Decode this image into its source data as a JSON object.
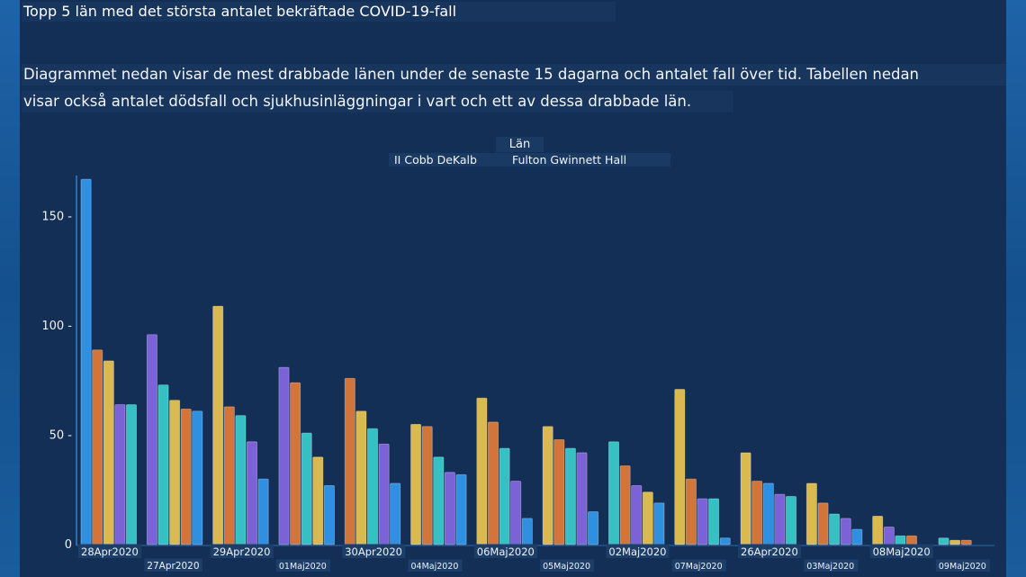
{
  "page": {
    "title": "Topp 5 län med det största antalet bekräftade COVID-19-fall",
    "description_line1": "Diagrammet nedan visar de mest drabbade länen under de senaste 15 dagarna och antalet fall över tid. Tabellen nedan",
    "description_line2": "visar också antalet dödsfall och sjukhusinläggningar i vart och ett av dessa drabbade län."
  },
  "legend": {
    "title": "Län",
    "group1": "II Cobb DeKalb",
    "group2": "Fulton Gwinnett Hall"
  },
  "chart_data": {
    "type": "bar",
    "categories": [
      "28Apr2020",
      "27Apr2020",
      "29Apr2020",
      "01Maj2020",
      "30Apr2020",
      "04Maj2020",
      "06Maj2020",
      "05Maj2020",
      "02Maj2020",
      "07Maj2020",
      "26Apr2020",
      "03Maj2020",
      "08Maj2020",
      "09Maj2020"
    ],
    "values": [
      [
        167,
        89,
        84,
        64,
        64
      ],
      [
        96,
        73,
        66,
        62,
        61
      ],
      [
        109,
        63,
        59,
        47,
        30
      ],
      [
        81,
        74,
        51,
        40,
        27
      ],
      [
        76,
        61,
        53,
        46,
        28
      ],
      [
        55,
        54,
        40,
        33,
        32
      ],
      [
        67,
        56,
        44,
        29,
        12
      ],
      [
        54,
        48,
        44,
        42,
        15
      ],
      [
        47,
        36,
        27,
        24,
        19
      ],
      [
        71,
        30,
        21,
        21,
        3
      ],
      [
        42,
        29,
        28,
        23,
        22
      ],
      [
        28,
        19,
        14,
        12,
        7
      ],
      [
        13,
        8,
        4,
        4,
        0
      ],
      [
        3,
        2,
        2,
        0,
        0
      ]
    ],
    "bar_colors": [
      [
        "#2f8fe0",
        "#d2753a",
        "#d9b950",
        "#7b62d6",
        "#35c1c4"
      ],
      [
        "#7b62d6",
        "#35c1c4",
        "#d9b950",
        "#d2753a",
        "#2f8fe0"
      ],
      [
        "#d9b950",
        "#d2753a",
        "#35c1c4",
        "#7b62d6",
        "#2f8fe0"
      ],
      [
        "#7b62d6",
        "#d2753a",
        "#35c1c4",
        "#d9b950",
        "#2f8fe0"
      ],
      [
        "#d2753a",
        "#d9b950",
        "#35c1c4",
        "#7b62d6",
        "#2f8fe0"
      ],
      [
        "#d9b950",
        "#d2753a",
        "#35c1c4",
        "#7b62d6",
        "#2f8fe0"
      ],
      [
        "#d9b950",
        "#d2753a",
        "#35c1c4",
        "#7b62d6",
        "#2f8fe0"
      ],
      [
        "#d9b950",
        "#d2753a",
        "#35c1c4",
        "#7b62d6",
        "#2f8fe0"
      ],
      [
        "#35c1c4",
        "#d2753a",
        "#7b62d6",
        "#d9b950",
        "#2f8fe0"
      ],
      [
        "#d9b950",
        "#d2753a",
        "#7b62d6",
        "#35c1c4",
        "#2f8fe0"
      ],
      [
        "#d9b950",
        "#d2753a",
        "#2f8fe0",
        "#7b62d6",
        "#35c1c4"
      ],
      [
        "#d9b950",
        "#d2753a",
        "#35c1c4",
        "#7b62d6",
        "#2f8fe0"
      ],
      [
        "#d9b950",
        "#7b62d6",
        "#35c1c4",
        "#d2753a",
        "#2f8fe0"
      ],
      [
        "#35c1c4",
        "#d9b950",
        "#d2753a",
        "#7b62d6",
        "#2f8fe0"
      ]
    ],
    "yticks": [
      "0",
      "50",
      "100",
      "150"
    ],
    "ytick_values": [
      0,
      50,
      100,
      150
    ],
    "ylim": [
      0,
      170
    ],
    "grid": false,
    "legend_position": "top-center"
  }
}
